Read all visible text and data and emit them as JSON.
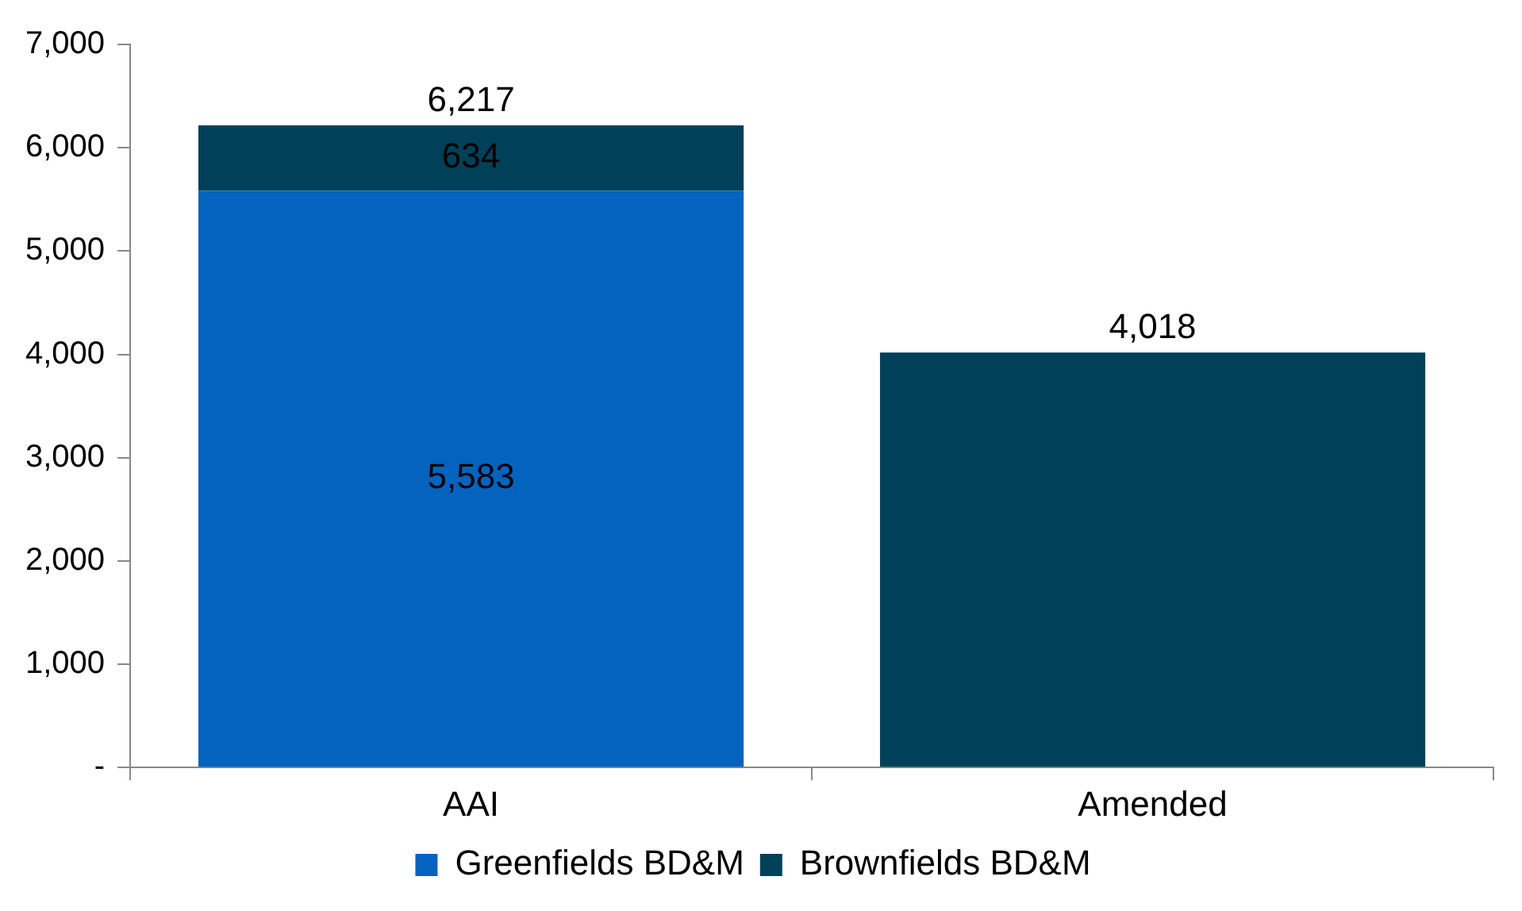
{
  "chart_data": {
    "type": "bar",
    "stacked": true,
    "categories": [
      "AAI",
      "Amended"
    ],
    "series": [
      {
        "name": "Greenfields BD&M",
        "color": "#0563c0",
        "values": [
          5583,
          null
        ],
        "value_labels": [
          "5,583",
          null
        ]
      },
      {
        "name": "Brownfields BD&M",
        "color": "#014059",
        "values": [
          634,
          4018
        ],
        "value_labels": [
          "634",
          null
        ]
      }
    ],
    "totals": [
      "6,217",
      "4,018"
    ],
    "ylim": [
      0,
      7000
    ],
    "yticks": [
      {
        "value": 0,
        "label": "-"
      },
      {
        "value": 1000,
        "label": "1,000"
      },
      {
        "value": 2000,
        "label": "2,000"
      },
      {
        "value": 3000,
        "label": "3,000"
      },
      {
        "value": 4000,
        "label": "4,000"
      },
      {
        "value": 5000,
        "label": "5,000"
      },
      {
        "value": 6000,
        "label": "6,000"
      },
      {
        "value": 7000,
        "label": "7,000"
      }
    ],
    "grid": false,
    "legend": "bottom"
  }
}
